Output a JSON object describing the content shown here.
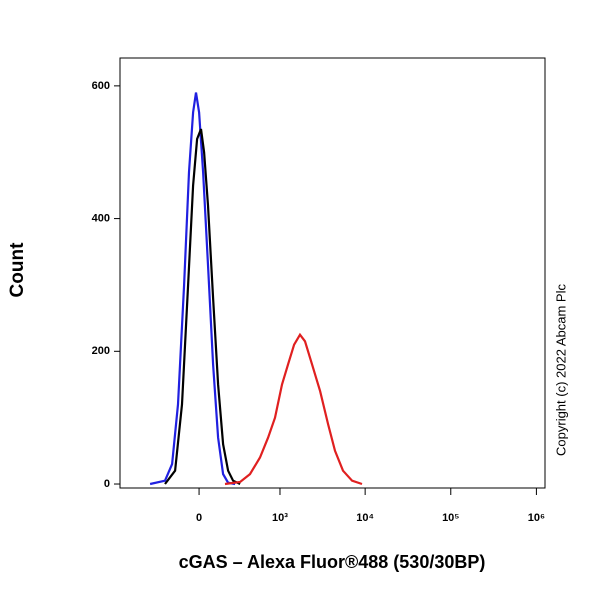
{
  "chart_data": {
    "type": "line",
    "ylabel": "Count",
    "xlabel": "cGAS – Alexa Fluor®488 (530/30BP)",
    "annotation": "Copyright (c) 2022 Abcam Plc",
    "xscale": "asinh",
    "xlim": [
      -950,
      1260000
    ],
    "ylim": [
      -6,
      642
    ],
    "xticks": [
      0,
      {
        "value": 1000,
        "label": "10³"
      },
      {
        "value": 10000,
        "label": "10⁴"
      },
      {
        "value": 100000,
        "label": "10⁵"
      },
      {
        "value": 1000000,
        "label": "10⁶"
      }
    ],
    "yticks": [
      0,
      200,
      400,
      600
    ],
    "series": [
      {
        "color": "#2020e0",
        "x": [
          -398,
          -241,
          -182,
          -137,
          -95,
          -63,
          -37,
          -19,
          0,
          25,
          56,
          89,
          123,
          159,
          198,
          259
        ],
        "values": [
          0,
          5,
          30,
          120,
          300,
          470,
          560,
          590,
          560,
          470,
          330,
          180,
          70,
          15,
          2,
          0
        ]
      },
      {
        "color": "#000000",
        "x": [
          -241,
          -159,
          -109,
          -69,
          -37,
          -12,
          12,
          31,
          56,
          89,
          123,
          159,
          198,
          241,
          309
        ],
        "values": [
          0,
          20,
          120,
          300,
          450,
          520,
          535,
          500,
          420,
          280,
          150,
          60,
          20,
          5,
          0
        ]
      },
      {
        "color": "#e02020",
        "x": [
          174,
          309,
          423,
          570,
          718,
          872,
          1058,
          1247,
          1470,
          1730,
          1980,
          2394,
          2972,
          3687,
          4449,
          5515,
          7036,
          9200
        ],
        "values": [
          0,
          3,
          15,
          40,
          70,
          100,
          150,
          180,
          210,
          225,
          215,
          180,
          140,
          90,
          50,
          20,
          5,
          0
        ]
      }
    ]
  }
}
